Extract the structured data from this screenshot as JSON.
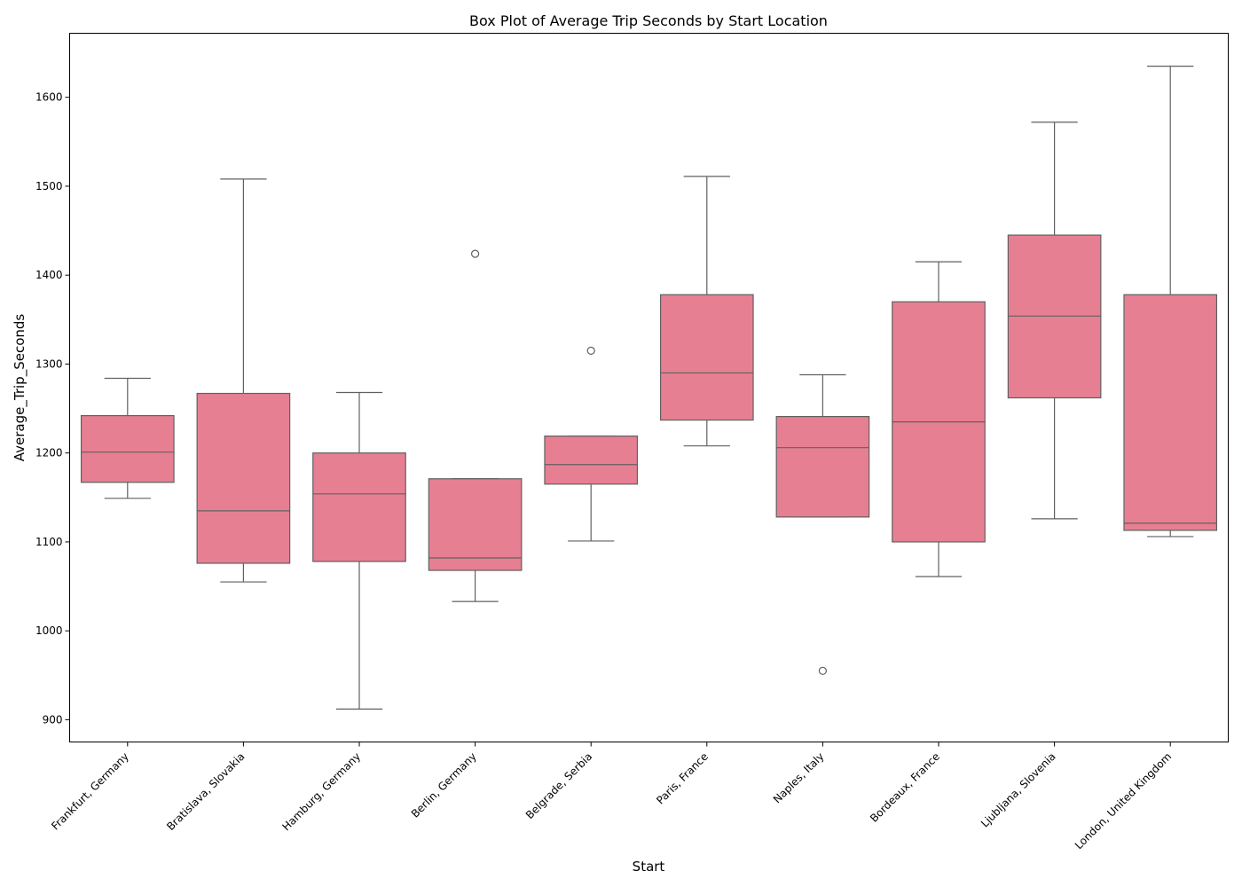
{
  "chart_data": {
    "type": "box",
    "title": "Box Plot of Average Trip Seconds by Start Location",
    "xlabel": "Start",
    "ylabel": "Average_Trip_Seconds",
    "ylim": [
      875,
      1672
    ],
    "yticks": [
      900,
      1000,
      1100,
      1200,
      1300,
      1400,
      1500,
      1600
    ],
    "grid": false,
    "box_color": "#e77f92",
    "line_color": "#606060",
    "categories": [
      "Frankfurt, Germany",
      "Bratislava, Slovakia",
      "Hamburg, Germany",
      "Berlin, Germany",
      "Belgrade, Serbia",
      "Paris, France",
      "Naples, Italy",
      "Bordeaux, France",
      "Ljubljana, Slovenia",
      "London, United Kingdom"
    ],
    "boxes": [
      {
        "whisker_low": 1149,
        "q1": 1167,
        "median": 1201,
        "q3": 1242,
        "whisker_high": 1284,
        "outliers": []
      },
      {
        "whisker_low": 1055,
        "q1": 1076,
        "median": 1135,
        "q3": 1267,
        "whisker_high": 1508,
        "outliers": []
      },
      {
        "whisker_low": 912,
        "q1": 1078,
        "median": 1154,
        "q3": 1200,
        "whisker_high": 1268,
        "outliers": []
      },
      {
        "whisker_low": 1033,
        "q1": 1068,
        "median": 1082,
        "q3": 1171,
        "whisker_high": 1171,
        "outliers": [
          1424
        ]
      },
      {
        "whisker_low": 1101,
        "q1": 1165,
        "median": 1187,
        "q3": 1219,
        "whisker_high": 1219,
        "outliers": [
          1315
        ]
      },
      {
        "whisker_low": 1208,
        "q1": 1237,
        "median": 1290,
        "q3": 1378,
        "whisker_high": 1511,
        "outliers": []
      },
      {
        "whisker_low": 1128,
        "q1": 1128,
        "median": 1206,
        "q3": 1241,
        "whisker_high": 1288,
        "outliers": [
          955
        ]
      },
      {
        "whisker_low": 1061,
        "q1": 1100,
        "median": 1235,
        "q3": 1370,
        "whisker_high": 1415,
        "outliers": []
      },
      {
        "whisker_low": 1126,
        "q1": 1262,
        "median": 1354,
        "q3": 1445,
        "whisker_high": 1572,
        "outliers": []
      },
      {
        "whisker_low": 1106,
        "q1": 1113,
        "median": 1121,
        "q3": 1378,
        "whisker_high": 1635,
        "outliers": []
      }
    ]
  }
}
